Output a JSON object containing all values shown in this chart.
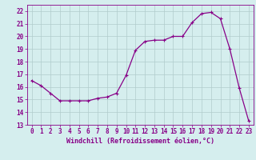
{
  "x": [
    0,
    1,
    2,
    3,
    4,
    5,
    6,
    7,
    8,
    9,
    10,
    11,
    12,
    13,
    14,
    15,
    16,
    17,
    18,
    19,
    20,
    21,
    22,
    23
  ],
  "y": [
    16.5,
    16.1,
    15.5,
    14.9,
    14.9,
    14.9,
    14.9,
    15.1,
    15.2,
    15.5,
    16.9,
    18.9,
    19.6,
    19.7,
    19.7,
    20.0,
    20.0,
    21.1,
    21.8,
    21.9,
    21.4,
    19.0,
    15.9,
    13.3
  ],
  "line_color": "#880088",
  "marker": "+",
  "marker_size": 3,
  "marker_lw": 0.8,
  "line_width": 0.9,
  "bg_color": "#d5eeee",
  "grid_color": "#b0cccc",
  "xlabel": "Windchill (Refroidissement éolien,°C)",
  "ylim": [
    13,
    22.5
  ],
  "yticks": [
    13,
    14,
    15,
    16,
    17,
    18,
    19,
    20,
    21,
    22
  ],
  "xlim": [
    -0.5,
    23.5
  ],
  "xticks": [
    0,
    1,
    2,
    3,
    4,
    5,
    6,
    7,
    8,
    9,
    10,
    11,
    12,
    13,
    14,
    15,
    16,
    17,
    18,
    19,
    20,
    21,
    22,
    23
  ],
  "tick_fontsize": 5.5,
  "label_fontsize": 6.0
}
